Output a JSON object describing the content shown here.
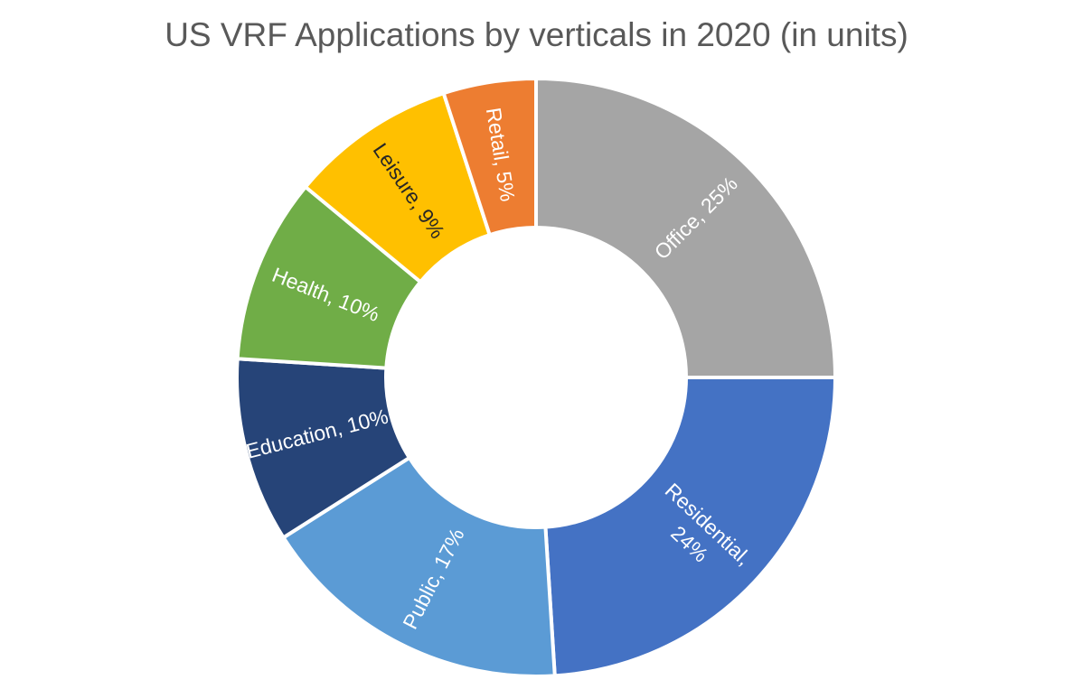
{
  "chart_data": {
    "type": "pie",
    "variant": "donut",
    "title": "US VRF Applications by verticals in 2020 (in units)",
    "categories": [
      "Office",
      "Residential",
      "Public",
      "Education",
      "Health",
      "Leisure",
      "Retail"
    ],
    "values": [
      25,
      24,
      17,
      10,
      10,
      9,
      5
    ],
    "unit": "%",
    "labels": [
      "Office, 25%",
      "Residential, 24%",
      "Public, 17%",
      "Education, 10%",
      "Health, 10%",
      "Leisure, 9%",
      "Retail, 5%"
    ],
    "colors": [
      "#A5A5A5",
      "#4472C4",
      "#5B9BD5",
      "#264478",
      "#70AD47",
      "#FFC000",
      "#ED7D31"
    ],
    "label_colors": [
      "#FFFFFF",
      "#FFFFFF",
      "#FFFFFF",
      "#FFFFFF",
      "#FFFFFF",
      "#262626",
      "#FFFFFF"
    ],
    "start": "12 o'clock",
    "direction": "clockwise",
    "legend": "none"
  }
}
